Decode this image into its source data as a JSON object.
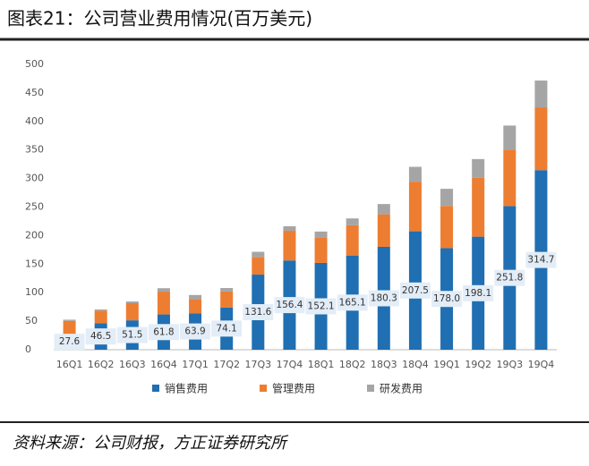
{
  "chart_data": {
    "type": "stacked_bar",
    "title": "图表21：公司营业费用情况(百万美元)",
    "source": "资料来源：公司财报，方正证券研究所",
    "categories": [
      "16Q1",
      "16Q2",
      "16Q3",
      "16Q4",
      "17Q1",
      "17Q2",
      "17Q3",
      "17Q4",
      "18Q1",
      "18Q2",
      "18Q3",
      "18Q4",
      "19Q1",
      "19Q2",
      "19Q3",
      "19Q4"
    ],
    "series": [
      {
        "name": "销售费用",
        "color": "#1f6fb2",
        "values": [
          27.6,
          46.5,
          51.5,
          61.8,
          63.9,
          74.1,
          131.6,
          156.4,
          152.1,
          165.1,
          180.3,
          207.5,
          178.0,
          198.1,
          251.8,
          314.7
        ],
        "value_labels": [
          "27.6",
          "46.5",
          "51.5",
          "61.8",
          "63.9",
          "74.1",
          "131.6",
          "156.4",
          "152.1",
          "165.1",
          "180.3",
          "207.5",
          "178.0",
          "198.1",
          "251.8",
          "314.7"
        ]
      },
      {
        "name": "管理费用",
        "color": "#ed7d31",
        "values": [
          23,
          22,
          30,
          40,
          25,
          28,
          31,
          52,
          45,
          53,
          57,
          87,
          74,
          103,
          99,
          110
        ]
      },
      {
        "name": "研发费用",
        "color": "#a5a5a5",
        "values": [
          2,
          2,
          3,
          6,
          7,
          6,
          9,
          8,
          10,
          12,
          18,
          26,
          30,
          33,
          42,
          47
        ]
      }
    ],
    "ylim": [
      0,
      500
    ],
    "yticks": [
      0,
      50,
      100,
      150,
      200,
      250,
      300,
      350,
      400,
      450,
      500
    ],
    "legend": "bottom"
  }
}
